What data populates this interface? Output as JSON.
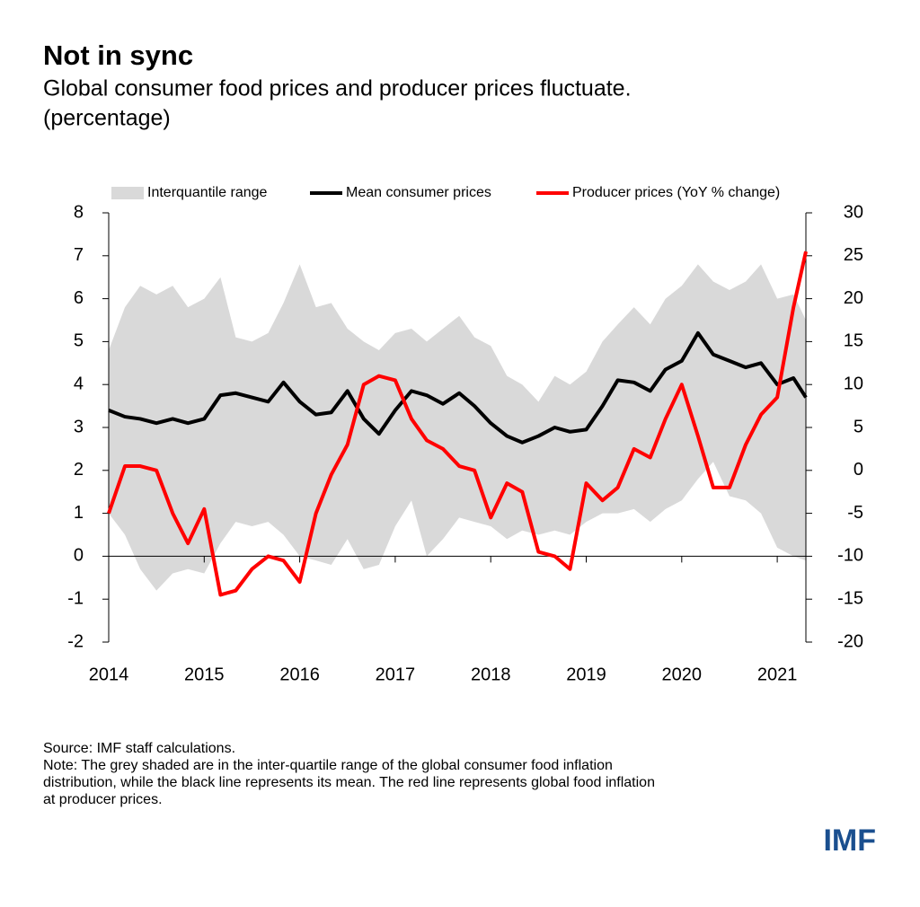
{
  "header": {
    "title": "Not in sync",
    "subtitle": [
      "Global consumer food prices and producer prices fluctuate.",
      "(percentage)"
    ]
  },
  "chart_data": {
    "type": "line",
    "x": [
      2014,
      2014.17,
      2014.33,
      2014.5,
      2014.67,
      2014.83,
      2015,
      2015.17,
      2015.33,
      2015.5,
      2015.67,
      2015.83,
      2016,
      2016.17,
      2016.33,
      2016.5,
      2016.67,
      2016.83,
      2017,
      2017.17,
      2017.33,
      2017.5,
      2017.67,
      2017.83,
      2018,
      2018.17,
      2018.33,
      2018.5,
      2018.67,
      2018.83,
      2019,
      2019.17,
      2019.33,
      2019.5,
      2019.67,
      2019.83,
      2020,
      2020.17,
      2020.33,
      2020.5,
      2020.67,
      2020.83,
      2021,
      2021.17,
      2021.3
    ],
    "series": [
      {
        "name": "Interquantile range",
        "color": "#d9d9d9",
        "low": [
          1.0,
          0.5,
          -0.3,
          -0.8,
          -0.4,
          -0.3,
          -0.4,
          0.3,
          0.8,
          0.7,
          0.8,
          0.5,
          0.0,
          -0.1,
          -0.2,
          0.4,
          -0.3,
          -0.2,
          0.7,
          1.3,
          0.0,
          0.4,
          0.9,
          0.8,
          0.7,
          0.4,
          0.6,
          0.5,
          0.6,
          0.5,
          0.8,
          1.0,
          1.0,
          1.1,
          0.8,
          1.1,
          1.3,
          1.8,
          2.2,
          1.4,
          1.3,
          1.0,
          0.2,
          0.0,
          -0.1
        ],
        "high": [
          4.8,
          5.8,
          6.3,
          6.1,
          6.3,
          5.8,
          6.0,
          6.5,
          5.1,
          5.0,
          5.2,
          5.9,
          6.8,
          5.8,
          5.9,
          5.3,
          5.0,
          4.8,
          5.2,
          5.3,
          5.0,
          5.3,
          5.6,
          5.1,
          4.9,
          4.2,
          4.0,
          3.6,
          4.2,
          4.0,
          4.3,
          5.0,
          5.4,
          5.8,
          5.4,
          6.0,
          6.3,
          6.8,
          6.4,
          6.2,
          6.4,
          6.8,
          6.0,
          6.1,
          5.5
        ]
      },
      {
        "name": "Mean consumer prices",
        "color": "#000000",
        "values": [
          3.4,
          3.25,
          3.2,
          3.1,
          3.2,
          3.1,
          3.2,
          3.75,
          3.8,
          3.7,
          3.6,
          4.05,
          3.6,
          3.3,
          3.35,
          3.85,
          3.2,
          2.85,
          3.4,
          3.85,
          3.75,
          3.55,
          3.8,
          3.5,
          3.1,
          2.8,
          2.65,
          2.8,
          3.0,
          2.9,
          2.95,
          3.5,
          4.1,
          4.05,
          3.85,
          4.35,
          4.55,
          5.2,
          4.7,
          4.55,
          4.4,
          4.5,
          4.0,
          4.15,
          3.7
        ]
      },
      {
        "name": "Producer prices (YoY % change)",
        "color": "#ff0000",
        "axis": "y2",
        "values": [
          -5,
          0.5,
          0.5,
          0,
          -5,
          -8.5,
          -4.5,
          -14.5,
          -14,
          -11.5,
          -10,
          -10.5,
          -13,
          -5,
          -0.5,
          3,
          10,
          11,
          10.5,
          6,
          3.5,
          2.5,
          0.5,
          0,
          -5.5,
          -1.5,
          -2.5,
          -9.5,
          -10,
          -11.5,
          -1.5,
          -3.5,
          -2,
          2.5,
          1.5,
          6,
          10,
          4,
          -2,
          -2,
          3,
          6.5,
          8.5,
          19,
          25.5
        ]
      }
    ],
    "xlim": [
      2014,
      2021.3
    ],
    "xticks": [
      2014,
      2015,
      2016,
      2017,
      2018,
      2019,
      2020,
      2021
    ],
    "ylim": [
      -2,
      8
    ],
    "yticks": [
      -2,
      -1,
      0,
      1,
      2,
      3,
      4,
      5,
      6,
      7,
      8
    ],
    "y2lim": [
      -20,
      30
    ],
    "y2ticks": [
      -20,
      -15,
      -10,
      -5,
      0,
      5,
      10,
      15,
      20,
      25,
      30
    ]
  },
  "footer": {
    "notes": [
      "Source: IMF staff calculations.",
      "Note: The grey shaded are in the inter-quartile range of the global consumer food inflation",
      "distribution, while the black line represents its mean. The red line represents global food inflation",
      "at producer prices."
    ],
    "logo": "IMF"
  }
}
